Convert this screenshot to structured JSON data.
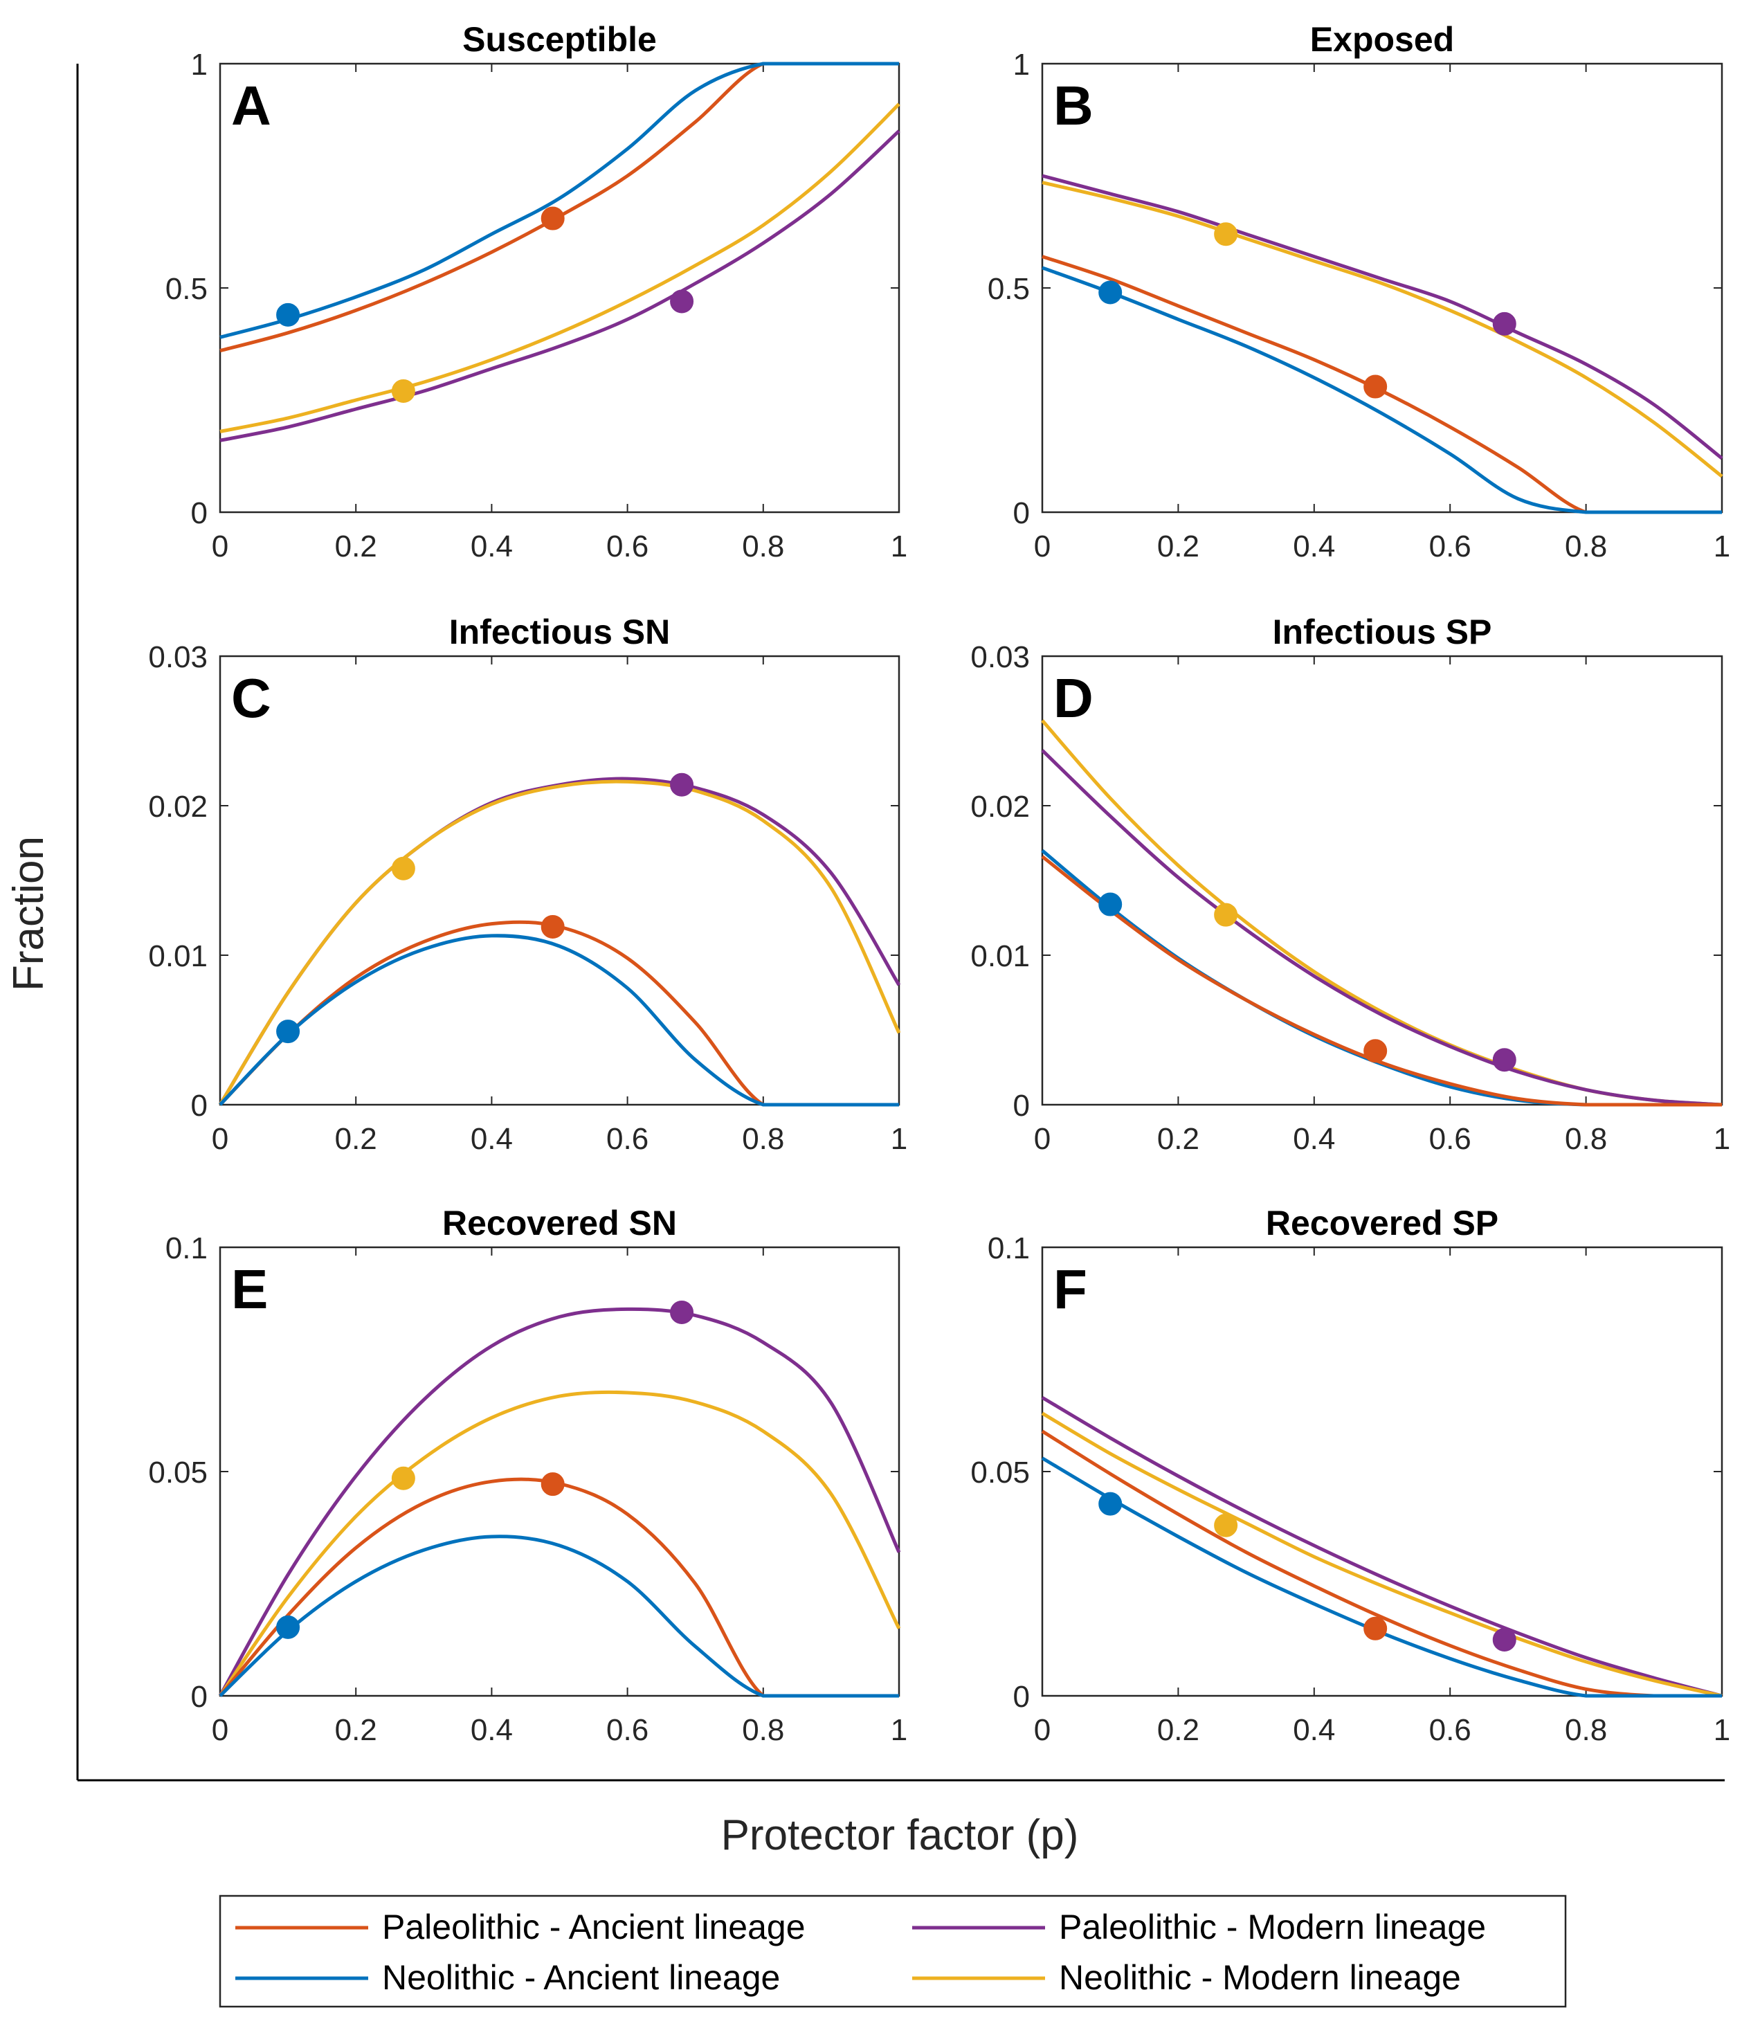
{
  "figure": {
    "xlabel": "Protector factor (p)",
    "ylabel": "Fraction"
  },
  "legend": [
    {
      "label": "Paleolithic - Ancient lineage",
      "color": "#d95319"
    },
    {
      "label": "Paleolithic - Modern lineage",
      "color": "#7e2f8e"
    },
    {
      "label": "Neolithic - Ancient lineage",
      "color": "#0072bd"
    },
    {
      "label": "Neolithic - Modern lineage",
      "color": "#edb120"
    }
  ],
  "chart_data": [
    {
      "type": "line",
      "letter": "A",
      "title": "Susceptible",
      "xlim": [
        0,
        1
      ],
      "ylim": [
        0,
        1
      ],
      "xticks": [
        "0",
        "0.2",
        "0.4",
        "0.6",
        "0.8",
        "1"
      ],
      "yticks": [
        "0",
        "0.5",
        "1"
      ],
      "x": [
        0,
        0.1,
        0.2,
        0.3,
        0.4,
        0.5,
        0.6,
        0.7,
        0.8,
        0.9,
        1.0
      ],
      "series": [
        {
          "name": "Paleolithic - Ancient lineage",
          "color": "#d95319",
          "values": [
            0.36,
            0.4,
            0.45,
            0.51,
            0.58,
            0.66,
            0.75,
            0.87,
            1.0,
            1.0,
            1.0
          ],
          "marker": [
            0.49,
            0.655
          ]
        },
        {
          "name": "Neolithic - Ancient lineage",
          "color": "#0072bd",
          "values": [
            0.39,
            0.43,
            0.48,
            0.54,
            0.62,
            0.7,
            0.81,
            0.94,
            1.0,
            1.0,
            1.0
          ],
          "marker": [
            0.1,
            0.44
          ]
        },
        {
          "name": "Neolithic - Modern lineage",
          "color": "#edb120",
          "values": [
            0.18,
            0.21,
            0.25,
            0.29,
            0.34,
            0.4,
            0.47,
            0.55,
            0.64,
            0.76,
            0.91
          ],
          "marker": [
            0.27,
            0.27
          ]
        },
        {
          "name": "Paleolithic - Modern lineage",
          "color": "#7e2f8e",
          "values": [
            0.16,
            0.19,
            0.23,
            0.27,
            0.32,
            0.37,
            0.43,
            0.51,
            0.6,
            0.71,
            0.85
          ],
          "marker": [
            0.68,
            0.47
          ]
        }
      ]
    },
    {
      "type": "line",
      "letter": "B",
      "title": "Exposed",
      "xlim": [
        0,
        1
      ],
      "ylim": [
        0,
        1
      ],
      "xticks": [
        "0",
        "0.2",
        "0.4",
        "0.6",
        "0.8",
        "1"
      ],
      "yticks": [
        "0",
        "0.5",
        "1"
      ],
      "x": [
        0,
        0.1,
        0.2,
        0.3,
        0.4,
        0.5,
        0.6,
        0.7,
        0.8,
        0.9,
        1.0
      ],
      "series": [
        {
          "name": "Paleolithic - Modern lineage",
          "color": "#7e2f8e",
          "values": [
            0.75,
            0.71,
            0.67,
            0.62,
            0.57,
            0.52,
            0.47,
            0.4,
            0.33,
            0.24,
            0.12
          ],
          "marker": [
            0.68,
            0.42
          ]
        },
        {
          "name": "Neolithic - Modern lineage",
          "color": "#edb120",
          "values": [
            0.735,
            0.7,
            0.66,
            0.61,
            0.56,
            0.51,
            0.45,
            0.38,
            0.3,
            0.2,
            0.08
          ],
          "marker": [
            0.27,
            0.62
          ]
        },
        {
          "name": "Paleolithic - Ancient lineage",
          "color": "#d95319",
          "values": [
            0.57,
            0.52,
            0.46,
            0.4,
            0.34,
            0.27,
            0.19,
            0.1,
            0.0,
            0.0,
            0.0
          ],
          "marker": [
            0.49,
            0.28
          ]
        },
        {
          "name": "Neolithic - Ancient lineage",
          "color": "#0072bd",
          "values": [
            0.545,
            0.49,
            0.43,
            0.37,
            0.3,
            0.22,
            0.13,
            0.03,
            0.0,
            0.0,
            0.0
          ],
          "marker": [
            0.1,
            0.49
          ]
        }
      ]
    },
    {
      "type": "line",
      "letter": "C",
      "title": "Infectious SN",
      "xlim": [
        0,
        1
      ],
      "ylim": [
        0,
        0.03
      ],
      "xticks": [
        "0",
        "0.2",
        "0.4",
        "0.6",
        "0.8",
        "1"
      ],
      "yticks": [
        "0",
        "0.01",
        "0.02",
        "0.03"
      ],
      "x": [
        0,
        0.1,
        0.2,
        0.3,
        0.4,
        0.5,
        0.6,
        0.7,
        0.8,
        0.9,
        1.0
      ],
      "series": [
        {
          "name": "Paleolithic - Modern lineage",
          "color": "#7e2f8e",
          "values": [
            0.0,
            0.0075,
            0.0135,
            0.0175,
            0.0202,
            0.0214,
            0.0218,
            0.0212,
            0.0194,
            0.0155,
            0.008
          ],
          "marker": [
            0.68,
            0.0214
          ]
        },
        {
          "name": "Neolithic - Modern lineage",
          "color": "#edb120",
          "values": [
            0.0,
            0.0075,
            0.0135,
            0.0175,
            0.0201,
            0.0213,
            0.0216,
            0.021,
            0.019,
            0.0145,
            0.0048
          ],
          "marker": [
            0.27,
            0.0158
          ]
        },
        {
          "name": "Paleolithic - Ancient lineage",
          "color": "#d95319",
          "values": [
            0.0,
            0.0047,
            0.0085,
            0.0109,
            0.0121,
            0.0119,
            0.0098,
            0.0055,
            0.0,
            0.0,
            0.0
          ],
          "marker": [
            0.49,
            0.0119
          ]
        },
        {
          "name": "Neolithic - Ancient lineage",
          "color": "#0072bd",
          "values": [
            0.0,
            0.0047,
            0.0082,
            0.0104,
            0.0113,
            0.0106,
            0.0078,
            0.003,
            0.0,
            0.0,
            0.0
          ],
          "marker": [
            0.1,
            0.0049
          ]
        }
      ]
    },
    {
      "type": "line",
      "letter": "D",
      "title": "Infectious SP",
      "xlim": [
        0,
        1
      ],
      "ylim": [
        0,
        0.03
      ],
      "xticks": [
        "0",
        "0.2",
        "0.4",
        "0.6",
        "0.8",
        "1"
      ],
      "yticks": [
        "0",
        "0.01",
        "0.02",
        "0.03"
      ],
      "x": [
        0,
        0.1,
        0.2,
        0.3,
        0.4,
        0.5,
        0.6,
        0.7,
        0.8,
        0.9,
        1.0
      ],
      "series": [
        {
          "name": "Neolithic - Modern lineage",
          "color": "#edb120",
          "values": [
            0.0257,
            0.0205,
            0.016,
            0.0122,
            0.0089,
            0.0062,
            0.004,
            0.0023,
            0.001,
            0.0003,
            0.0
          ],
          "marker": [
            0.27,
            0.0127
          ]
        },
        {
          "name": "Paleolithic - Modern lineage",
          "color": "#7e2f8e",
          "values": [
            0.0237,
            0.0193,
            0.0152,
            0.0117,
            0.0086,
            0.006,
            0.0039,
            0.0022,
            0.001,
            0.0003,
            0.0
          ],
          "marker": [
            0.68,
            0.003
          ]
        },
        {
          "name": "Neolithic - Ancient lineage",
          "color": "#0072bd",
          "values": [
            0.017,
            0.0132,
            0.0098,
            0.007,
            0.0046,
            0.0027,
            0.0012,
            0.0003,
            0.0,
            0.0,
            0.0
          ],
          "marker": [
            0.1,
            0.0134
          ]
        },
        {
          "name": "Paleolithic - Ancient lineage",
          "color": "#d95319",
          "values": [
            0.0166,
            0.013,
            0.0097,
            0.007,
            0.0047,
            0.0028,
            0.0014,
            0.0004,
            0.0,
            0.0,
            0.0
          ],
          "marker": [
            0.49,
            0.0036
          ]
        }
      ]
    },
    {
      "type": "line",
      "letter": "E",
      "title": "Recovered SN",
      "xlim": [
        0,
        1
      ],
      "ylim": [
        0,
        0.1
      ],
      "xticks": [
        "0",
        "0.2",
        "0.4",
        "0.6",
        "0.8",
        "1"
      ],
      "yticks": [
        "0",
        "0.05",
        "0.1"
      ],
      "x": [
        0,
        0.1,
        0.2,
        0.3,
        0.4,
        0.5,
        0.6,
        0.7,
        0.8,
        0.9,
        1.0
      ],
      "series": [
        {
          "name": "Paleolithic - Modern lineage",
          "color": "#7e2f8e",
          "values": [
            0.0,
            0.027,
            0.049,
            0.066,
            0.078,
            0.0845,
            0.0862,
            0.0848,
            0.0788,
            0.0653,
            0.032
          ],
          "marker": [
            0.68,
            0.0855
          ]
        },
        {
          "name": "Neolithic - Modern lineage",
          "color": "#edb120",
          "values": [
            0.0,
            0.022,
            0.04,
            0.053,
            0.062,
            0.0668,
            0.0676,
            0.0655,
            0.059,
            0.045,
            0.015
          ],
          "marker": [
            0.27,
            0.0485
          ]
        },
        {
          "name": "Paleolithic - Ancient lineage",
          "color": "#d95319",
          "values": [
            0.0,
            0.018,
            0.033,
            0.043,
            0.0478,
            0.0473,
            0.0405,
            0.025,
            0.0,
            0.0,
            0.0
          ],
          "marker": [
            0.49,
            0.0472
          ]
        },
        {
          "name": "Neolithic - Ancient lineage",
          "color": "#0072bd",
          "values": [
            0.0,
            0.0145,
            0.0255,
            0.0325,
            0.0355,
            0.0335,
            0.0255,
            0.011,
            0.0,
            0.0,
            0.0
          ],
          "marker": [
            0.1,
            0.0153
          ]
        }
      ]
    },
    {
      "type": "line",
      "letter": "F",
      "title": "Recovered SP",
      "xlim": [
        0,
        1
      ],
      "ylim": [
        0,
        0.1
      ],
      "xticks": [
        "0",
        "0.2",
        "0.4",
        "0.6",
        "0.8",
        "1"
      ],
      "yticks": [
        "0",
        "0.05",
        "0.1"
      ],
      "x": [
        0,
        0.1,
        0.2,
        0.3,
        0.4,
        0.5,
        0.6,
        0.7,
        0.8,
        0.9,
        1.0
      ],
      "series": [
        {
          "name": "Paleolithic - Modern lineage",
          "color": "#7e2f8e",
          "values": [
            0.0665,
            0.0575,
            0.049,
            0.041,
            0.0335,
            0.0265,
            0.02,
            0.014,
            0.0085,
            0.004,
            0.0
          ],
          "marker": [
            0.68,
            0.0125
          ]
        },
        {
          "name": "Neolithic - Modern lineage",
          "color": "#edb120",
          "values": [
            0.063,
            0.054,
            0.046,
            0.0385,
            0.031,
            0.0245,
            0.0185,
            0.0128,
            0.0076,
            0.0034,
            0.0
          ],
          "marker": [
            0.27,
            0.038
          ]
        },
        {
          "name": "Paleolithic - Ancient lineage",
          "color": "#d95319",
          "values": [
            0.059,
            0.0495,
            0.0405,
            0.032,
            0.0245,
            0.0175,
            0.0112,
            0.0058,
            0.0015,
            0.0,
            0.0
          ],
          "marker": [
            0.49,
            0.015
          ]
        },
        {
          "name": "Neolithic - Ancient lineage",
          "color": "#0072bd",
          "values": [
            0.053,
            0.044,
            0.0355,
            0.0275,
            0.0205,
            0.014,
            0.0083,
            0.0035,
            0.0,
            0.0,
            0.0
          ],
          "marker": [
            0.1,
            0.0428
          ]
        }
      ]
    }
  ]
}
